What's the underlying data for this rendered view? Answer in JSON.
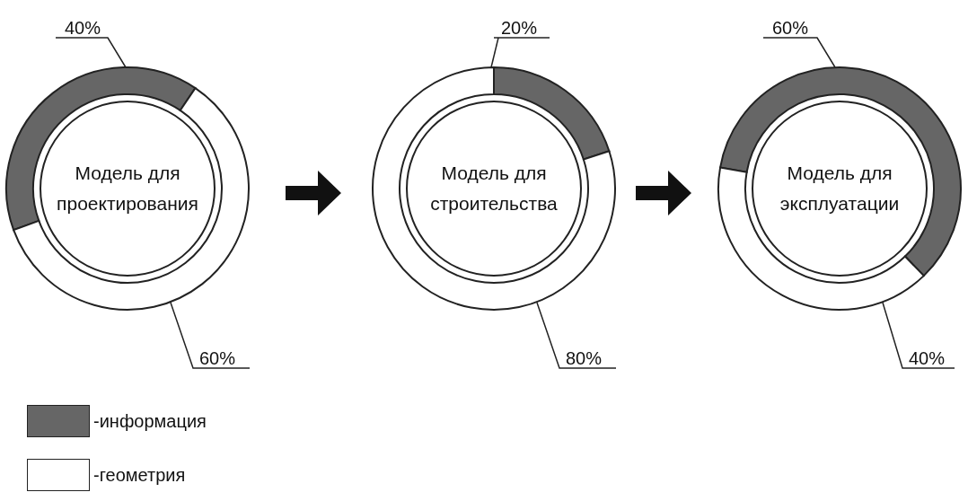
{
  "chart_data": [
    {
      "type": "donut",
      "title": "Модель для проектирования",
      "categories": [
        "-информация",
        "-геометрия"
      ],
      "values": [
        40,
        60
      ],
      "colors": [
        "#666666",
        "#ffffff"
      ],
      "value_labels": [
        "40%",
        "60%"
      ],
      "legend": "bottom"
    },
    {
      "type": "donut",
      "title": "Модель для строительства",
      "values": [
        20,
        80
      ],
      "colors": [
        "#666666",
        "#ffffff"
      ],
      "value_labels": [
        "20%",
        "80%"
      ]
    },
    {
      "type": "donut",
      "title": "Модель для эксплуатации",
      "values": [
        60,
        40
      ],
      "colors": [
        "#666666",
        "#ffffff"
      ],
      "value_labels": [
        "60%",
        "40%"
      ]
    }
  ]
}
